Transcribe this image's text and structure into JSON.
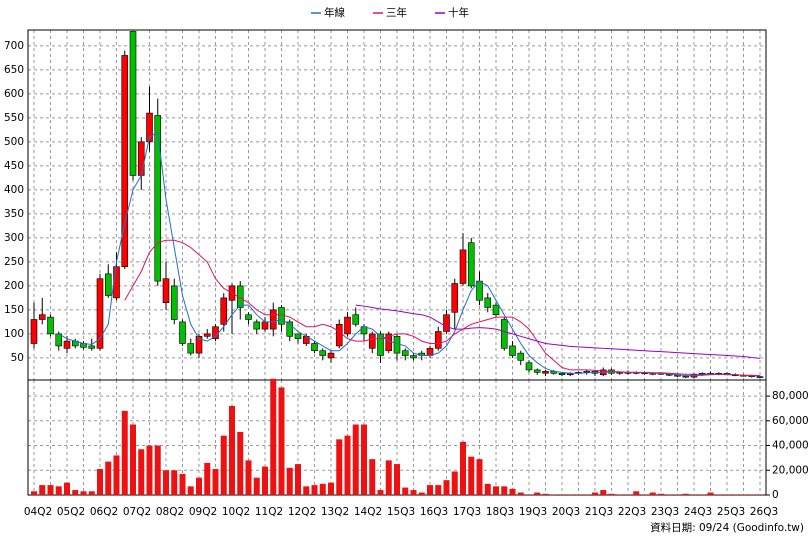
{
  "chart_data": [
    {
      "type": "candlestick",
      "legend": "top",
      "grid": true,
      "up_color": "#ff0000",
      "down_color": "#00c000",
      "categories": [
        "04Q2",
        null,
        null,
        null,
        "05Q2",
        null,
        null,
        null,
        "06Q2",
        null,
        null,
        null,
        "07Q2",
        null,
        null,
        null,
        "08Q2",
        null,
        null,
        null,
        "09Q2",
        null,
        null,
        null,
        "10Q2",
        null,
        null,
        null,
        "11Q2",
        null,
        null,
        null,
        "12Q2",
        null,
        null,
        null,
        "13Q2",
        null,
        null,
        null,
        "14Q2",
        null,
        null,
        null,
        "15Q3",
        null,
        null,
        null,
        "16Q3",
        null,
        null,
        null,
        "17Q3",
        null,
        null,
        null,
        "18Q3",
        null,
        null,
        null,
        "19Q3",
        null,
        null,
        null,
        "20Q3",
        null,
        null,
        null,
        "21Q3",
        null,
        null,
        null,
        "22Q3",
        null,
        null,
        null,
        "23Q3",
        null,
        null,
        null,
        "24Q3",
        null,
        null,
        null,
        "25Q3",
        null,
        null,
        null,
        "26Q3"
      ],
      "open": [
        80,
        130,
        135,
        100,
        70,
        85,
        80,
        75,
        70,
        225,
        175,
        240,
        730,
        430,
        500,
        555,
        165,
        200,
        125,
        80,
        60,
        95,
        90,
        120,
        170,
        200,
        140,
        125,
        110,
        110,
        155,
        125,
        100,
        80,
        80,
        65,
        50,
        75,
        100,
        140,
        115,
        70,
        100,
        65,
        95,
        65,
        55,
        60,
        55,
        70,
        105,
        145,
        205,
        290,
        210,
        175,
        160,
        130,
        75,
        60,
        40,
        25,
        18,
        22,
        18,
        15,
        18,
        20,
        22,
        15,
        25,
        18,
        20,
        18,
        20,
        16,
        18,
        16,
        14,
        12,
        10,
        15,
        18,
        16,
        18,
        15,
        14,
        13,
        11
      ],
      "high": [
        165,
        175,
        140,
        105,
        95,
        90,
        85,
        90,
        225,
        245,
        270,
        690,
        730,
        510,
        615,
        590,
        250,
        215,
        130,
        90,
        100,
        110,
        120,
        185,
        205,
        210,
        145,
        130,
        135,
        165,
        160,
        130,
        100,
        100,
        85,
        70,
        65,
        130,
        145,
        155,
        120,
        105,
        105,
        105,
        100,
        70,
        60,
        65,
        75,
        115,
        150,
        215,
        310,
        300,
        230,
        185,
        165,
        135,
        85,
        65,
        45,
        28,
        25,
        25,
        20,
        20,
        22,
        25,
        25,
        30,
        28,
        22,
        24,
        22,
        22,
        20,
        20,
        18,
        16,
        15,
        18,
        20,
        22,
        20,
        20,
        18,
        16,
        15,
        13
      ],
      "low": [
        70,
        120,
        95,
        65,
        60,
        70,
        68,
        65,
        65,
        175,
        170,
        235,
        420,
        400,
        480,
        200,
        150,
        120,
        75,
        55,
        50,
        90,
        85,
        105,
        100,
        130,
        120,
        100,
        105,
        95,
        105,
        85,
        80,
        75,
        60,
        45,
        40,
        70,
        95,
        115,
        85,
        60,
        40,
        60,
        45,
        45,
        45,
        45,
        50,
        65,
        100,
        110,
        200,
        195,
        160,
        145,
        135,
        65,
        50,
        35,
        20,
        15,
        12,
        15,
        12,
        12,
        15,
        15,
        12,
        12,
        15,
        15,
        15,
        16,
        15,
        14,
        15,
        12,
        10,
        8,
        8,
        12,
        15,
        14,
        14,
        12,
        11,
        9,
        8
      ],
      "close": [
        130,
        140,
        100,
        75,
        85,
        75,
        72,
        70,
        215,
        180,
        240,
        680,
        430,
        500,
        560,
        210,
        215,
        130,
        80,
        60,
        95,
        100,
        115,
        175,
        200,
        155,
        130,
        110,
        125,
        150,
        120,
        95,
        90,
        95,
        65,
        55,
        60,
        120,
        135,
        120,
        100,
        100,
        55,
        100,
        60,
        55,
        50,
        55,
        70,
        105,
        140,
        205,
        275,
        200,
        170,
        155,
        140,
        70,
        55,
        45,
        25,
        20,
        22,
        18,
        15,
        18,
        20,
        22,
        18,
        25,
        18,
        20,
        18,
        20,
        17,
        18,
        16,
        14,
        12,
        10,
        15,
        18,
        17,
        18,
        15,
        14,
        13,
        11,
        9
      ],
      "series": [
        {
          "name": "年線",
          "color": "#1f6fd0",
          "values": [
            null,
            null,
            null,
            100,
            90,
            85,
            80,
            78,
            90,
            120,
            250,
            330,
            400,
            430,
            510,
            520,
            380,
            280,
            180,
            120,
            90,
            85,
            95,
            115,
            140,
            160,
            160,
            140,
            125,
            125,
            130,
            120,
            105,
            95,
            85,
            75,
            65,
            65,
            80,
            100,
            115,
            110,
            95,
            85,
            80,
            75,
            60,
            55,
            55,
            60,
            75,
            105,
            150,
            190,
            210,
            200,
            170,
            140,
            110,
            80,
            55,
            40,
            28,
            22,
            20,
            18,
            18,
            19,
            20,
            20,
            21,
            21,
            20,
            20,
            19,
            18,
            18,
            17,
            15,
            13,
            13,
            14,
            15,
            16,
            16,
            15,
            14,
            13,
            12
          ]
        },
        {
          "name": "三年",
          "color": "#dc1464",
          "values": [
            null,
            null,
            null,
            null,
            null,
            null,
            null,
            null,
            null,
            null,
            null,
            170,
            200,
            230,
            270,
            290,
            295,
            295,
            290,
            280,
            265,
            250,
            215,
            195,
            185,
            175,
            165,
            150,
            140,
            140,
            140,
            135,
            125,
            115,
            115,
            120,
            115,
            105,
            90,
            85,
            85,
            90,
            90,
            95,
            100,
            100,
            95,
            85,
            80,
            80,
            85,
            100,
            110,
            120,
            125,
            130,
            135,
            135,
            135,
            125,
            110,
            85,
            60,
            45,
            30,
            25,
            25,
            25,
            24,
            23,
            22,
            21,
            20,
            20,
            20,
            19,
            19,
            18,
            17,
            16,
            16,
            16,
            16,
            16,
            15,
            15,
            14,
            14,
            13
          ]
        },
        {
          "name": "十年",
          "color": "#9900cc",
          "values": [
            null,
            null,
            null,
            null,
            null,
            null,
            null,
            null,
            null,
            null,
            null,
            null,
            null,
            null,
            null,
            null,
            null,
            null,
            null,
            null,
            null,
            null,
            null,
            null,
            null,
            null,
            null,
            null,
            null,
            null,
            null,
            null,
            null,
            null,
            null,
            null,
            null,
            null,
            null,
            160,
            158,
            155,
            152,
            150,
            148,
            145,
            142,
            140,
            135,
            125,
            115,
            110,
            110,
            112,
            113,
            112,
            110,
            105,
            100,
            95,
            90,
            85,
            80,
            78,
            76,
            74,
            73,
            72,
            71,
            70,
            69,
            68,
            67,
            66,
            65,
            64,
            63,
            62,
            61,
            60,
            59,
            58,
            57,
            56,
            55,
            54,
            53,
            51,
            49
          ]
        }
      ],
      "ylim": [
        4,
        733
      ],
      "yticks": [
        50,
        100,
        150,
        200,
        250,
        300,
        350,
        400,
        450,
        500,
        550,
        600,
        650,
        700
      ]
    },
    {
      "type": "bar",
      "color": "#ee1111",
      "values": [
        3000,
        8000,
        8000,
        7000,
        10000,
        4000,
        3000,
        3000,
        21000,
        27000,
        32000,
        68000,
        57000,
        37000,
        40000,
        40000,
        20000,
        20000,
        17000,
        7000,
        14000,
        26000,
        21000,
        48000,
        72000,
        51000,
        28000,
        14000,
        23000,
        94000,
        87000,
        22000,
        25000,
        7000,
        8000,
        9000,
        10000,
        45000,
        48000,
        57000,
        57000,
        29000,
        4000,
        28000,
        25000,
        6000,
        4000,
        2000,
        8000,
        8000,
        12000,
        19000,
        43000,
        31000,
        29000,
        9000,
        7000,
        7000,
        5000,
        2000,
        500,
        2000,
        1000,
        500,
        500,
        500,
        500,
        500,
        2000,
        4000,
        1000,
        500,
        500,
        3000,
        500,
        2000,
        1000,
        500,
        500,
        1000,
        500,
        500,
        2000,
        500,
        500,
        500,
        500,
        500,
        500
      ],
      "ylim": [
        0,
        93000
      ],
      "yticks": [
        0,
        {
          "value": 20000,
          "label": "20,000"
        },
        {
          "value": 40000,
          "label": "40,000"
        },
        {
          "value": 60000,
          "label": "60,000"
        },
        {
          "value": 80000,
          "label": "80,000"
        }
      ]
    }
  ],
  "footer": "資料日期: 09/24 (Goodinfo.tw)"
}
